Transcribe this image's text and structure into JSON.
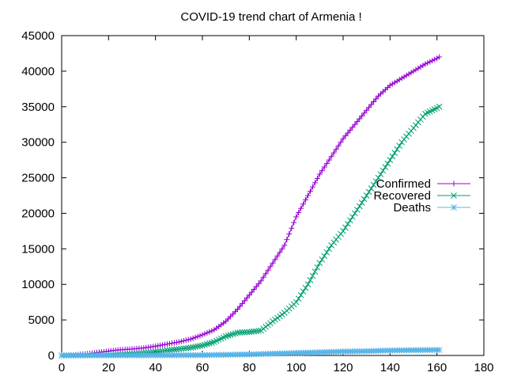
{
  "chart_data": {
    "type": "line",
    "title": "COVID-19 trend chart of Armenia !",
    "xlabel": "",
    "ylabel": "",
    "xlim": [
      0,
      180
    ],
    "ylim": [
      0,
      45000
    ],
    "x_ticks": [
      "0",
      "20",
      "40",
      "60",
      "80",
      "100",
      "120",
      "140",
      "160",
      "180"
    ],
    "y_ticks": [
      "0",
      "5000",
      "10000",
      "15000",
      "20000",
      "25000",
      "30000",
      "35000",
      "40000",
      "45000"
    ],
    "grid": false,
    "legend_position": "right",
    "series": [
      {
        "name": "Confirmed",
        "color": "#9400d3",
        "marker": "plus",
        "points": [
          [
            0,
            0
          ],
          [
            5,
            50
          ],
          [
            10,
            200
          ],
          [
            15,
            400
          ],
          [
            20,
            600
          ],
          [
            22,
            700
          ],
          [
            25,
            800
          ],
          [
            30,
            900
          ],
          [
            35,
            1050
          ],
          [
            40,
            1300
          ],
          [
            45,
            1600
          ],
          [
            50,
            1900
          ],
          [
            55,
            2300
          ],
          [
            60,
            2900
          ],
          [
            65,
            3600
          ],
          [
            70,
            4800
          ],
          [
            75,
            6500
          ],
          [
            80,
            8500
          ],
          [
            85,
            10500
          ],
          [
            90,
            13000
          ],
          [
            95,
            15500
          ],
          [
            100,
            19500
          ],
          [
            105,
            22500
          ],
          [
            110,
            25500
          ],
          [
            115,
            28000
          ],
          [
            120,
            30500
          ],
          [
            125,
            32500
          ],
          [
            130,
            34500
          ],
          [
            135,
            36500
          ],
          [
            140,
            38000
          ],
          [
            145,
            39000
          ],
          [
            150,
            40000
          ],
          [
            155,
            41000
          ],
          [
            160,
            41800
          ],
          [
            161,
            42000
          ]
        ]
      },
      {
        "name": "Recovered",
        "color": "#009e73",
        "marker": "cross",
        "points": [
          [
            0,
            0
          ],
          [
            20,
            50
          ],
          [
            30,
            200
          ],
          [
            40,
            500
          ],
          [
            45,
            700
          ],
          [
            50,
            900
          ],
          [
            55,
            1100
          ],
          [
            60,
            1400
          ],
          [
            65,
            1900
          ],
          [
            70,
            2700
          ],
          [
            75,
            3200
          ],
          [
            80,
            3300
          ],
          [
            85,
            3500
          ],
          [
            90,
            4800
          ],
          [
            95,
            6000
          ],
          [
            100,
            7500
          ],
          [
            105,
            10000
          ],
          [
            110,
            13000
          ],
          [
            115,
            15500
          ],
          [
            120,
            17500
          ],
          [
            125,
            20000
          ],
          [
            130,
            22500
          ],
          [
            135,
            25000
          ],
          [
            140,
            27500
          ],
          [
            145,
            30000
          ],
          [
            150,
            32000
          ],
          [
            155,
            34000
          ],
          [
            160,
            34800
          ],
          [
            161,
            35000
          ]
        ]
      },
      {
        "name": "Deaths",
        "color": "#56b4e9",
        "marker": "star",
        "points": [
          [
            0,
            0
          ],
          [
            20,
            10
          ],
          [
            40,
            20
          ],
          [
            60,
            50
          ],
          [
            70,
            100
          ],
          [
            80,
            150
          ],
          [
            90,
            250
          ],
          [
            100,
            350
          ],
          [
            110,
            450
          ],
          [
            120,
            550
          ],
          [
            130,
            600
          ],
          [
            140,
            700
          ],
          [
            150,
            750
          ],
          [
            161,
            780
          ]
        ]
      }
    ]
  }
}
